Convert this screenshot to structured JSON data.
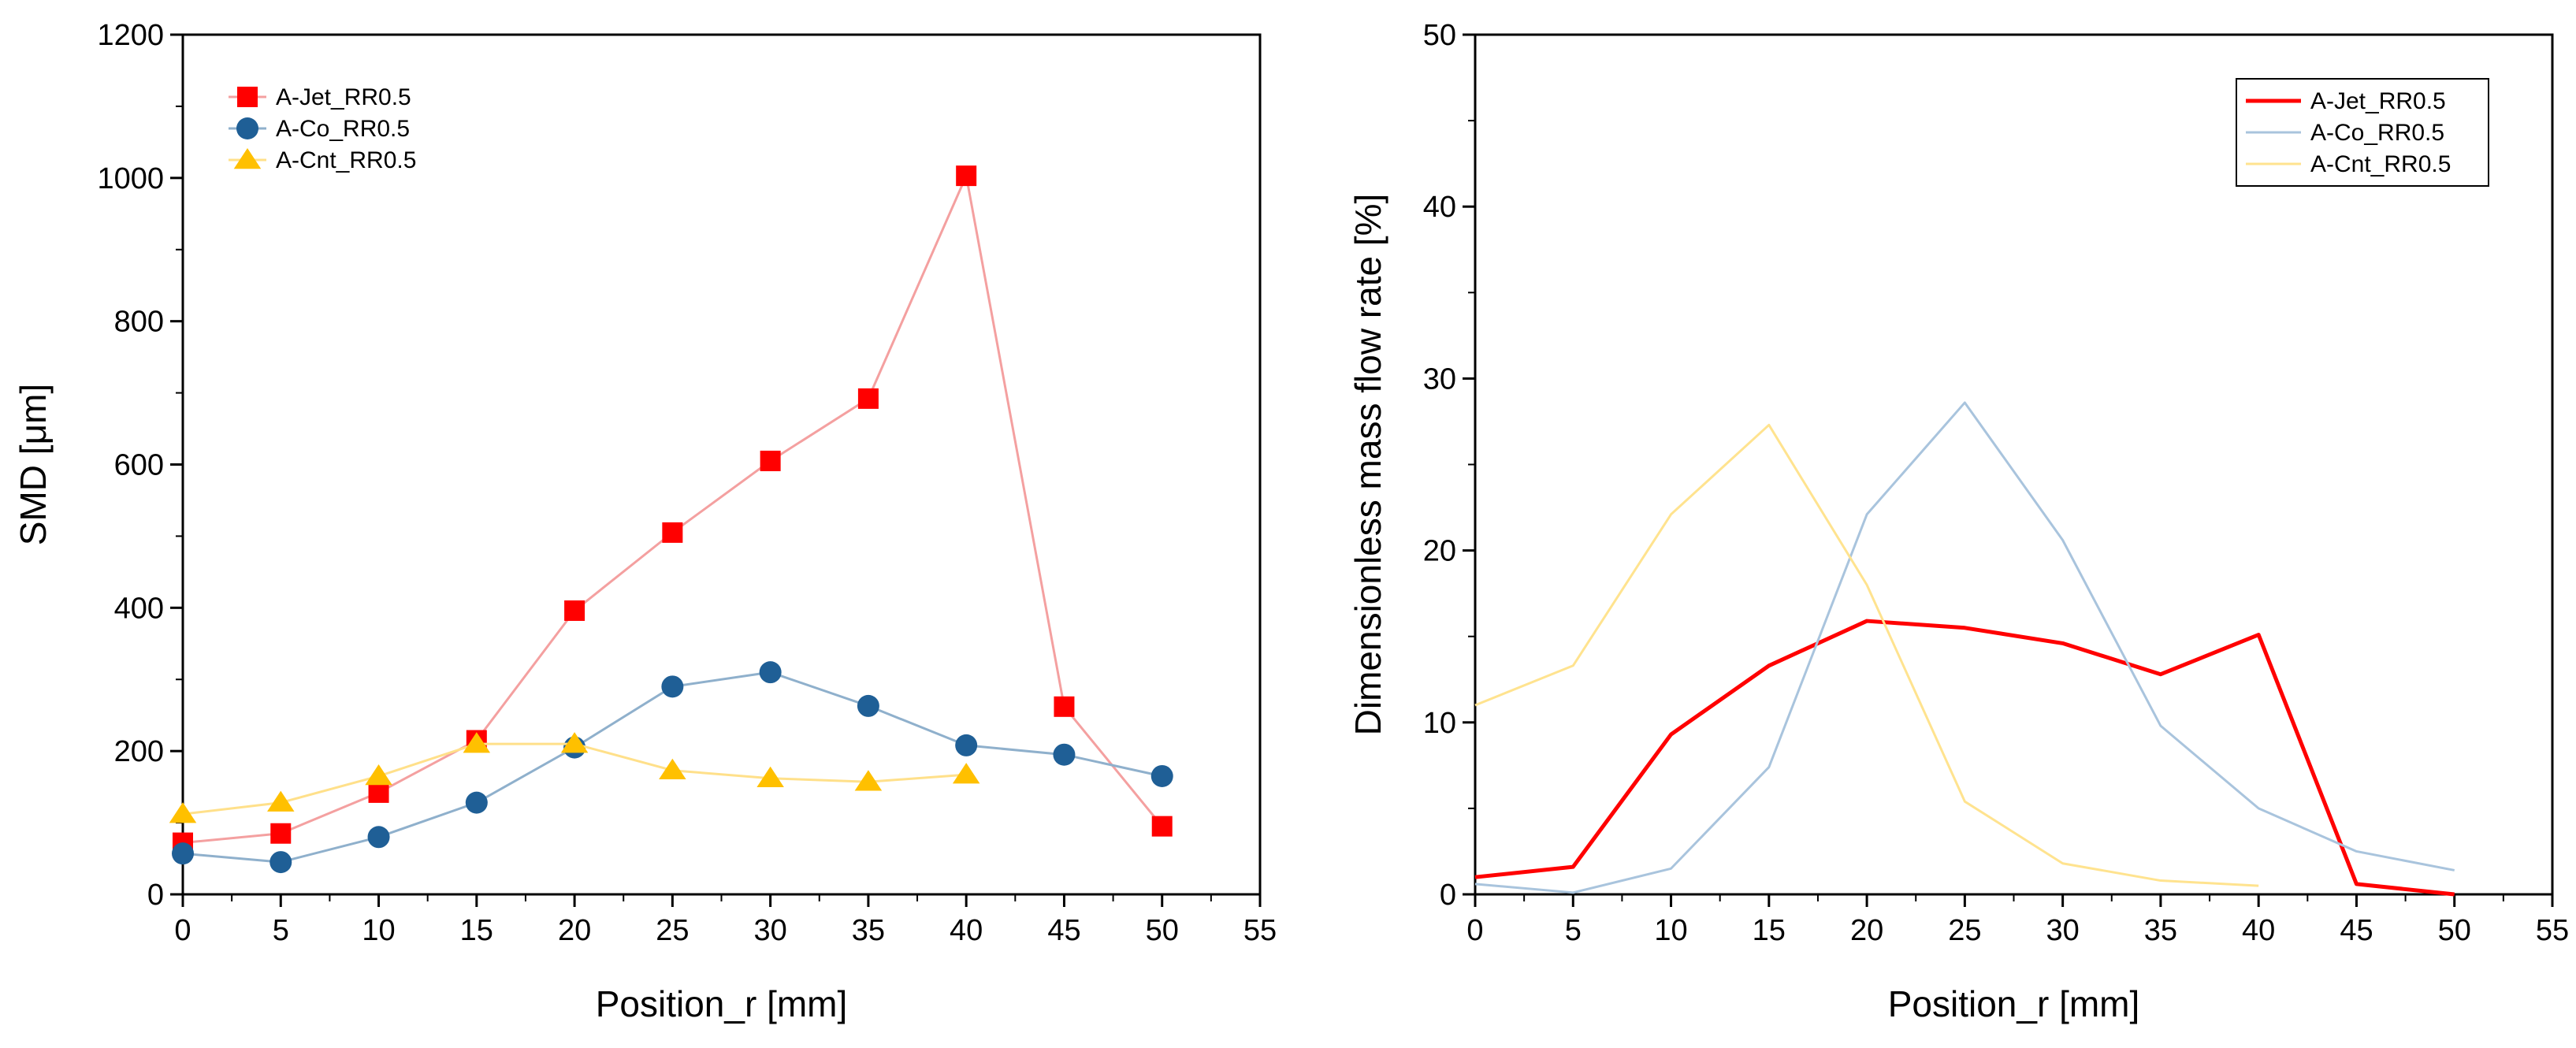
{
  "chart_data": [
    {
      "type": "line",
      "title": "",
      "xlabel": "Position_r [mm]",
      "ylabel": "SMD [μm]",
      "xlim": [
        0,
        55
      ],
      "ylim": [
        0,
        1200
      ],
      "xticks": [
        0,
        5,
        10,
        15,
        20,
        25,
        30,
        35,
        40,
        45,
        50,
        55
      ],
      "yticks": [
        0,
        200,
        400,
        600,
        800,
        1000,
        1200
      ],
      "legend_position": "top-left",
      "series": [
        {
          "name": "A-Jet_RR0.5",
          "color": "#ff0000",
          "line_color": "#f4a0a0",
          "marker": "square",
          "x": [
            0,
            5,
            10,
            15,
            20,
            25,
            30,
            35,
            40,
            45,
            50
          ],
          "y": [
            72,
            85,
            142,
            215,
            396,
            505,
            605,
            692,
            1003,
            262,
            95
          ]
        },
        {
          "name": "A-Co_RR0.5",
          "color": "#1f5f96",
          "line_color": "#8fb0cc",
          "marker": "circle",
          "x": [
            0,
            5,
            10,
            15,
            20,
            25,
            30,
            35,
            40,
            45,
            50
          ],
          "y": [
            57,
            45,
            80,
            128,
            205,
            290,
            310,
            263,
            208,
            195,
            165
          ]
        },
        {
          "name": "A-Cnt_RR0.5",
          "color": "#ffc000",
          "line_color": "#ffe08a",
          "marker": "triangle",
          "x": [
            0,
            5,
            10,
            15,
            20,
            25,
            30,
            35,
            40
          ],
          "y": [
            112,
            128,
            165,
            210,
            210,
            173,
            162,
            157,
            167
          ]
        }
      ]
    },
    {
      "type": "line",
      "title": "",
      "xlabel": "Position_r [mm]",
      "ylabel": "Dimensionless mass flow rate [%]",
      "xlim": [
        0,
        55
      ],
      "ylim": [
        0,
        50
      ],
      "xticks": [
        0,
        5,
        10,
        15,
        20,
        25,
        30,
        35,
        40,
        45,
        50,
        55
      ],
      "yticks": [
        0,
        10,
        20,
        30,
        40,
        50
      ],
      "legend_position": "top-right",
      "series": [
        {
          "name": "A-Jet_RR0.5",
          "color": "#ff0000",
          "line_color": "#ff0000",
          "marker": "none",
          "x": [
            0,
            5,
            10,
            15,
            20,
            25,
            30,
            35,
            40,
            45,
            50
          ],
          "y": [
            1.0,
            1.6,
            9.3,
            13.3,
            15.9,
            15.5,
            14.6,
            12.8,
            15.1,
            0.6,
            0.0
          ]
        },
        {
          "name": "A-Co_RR0.5",
          "color": "#a9c4dd",
          "line_color": "#a9c4dd",
          "marker": "none",
          "x": [
            0,
            5,
            10,
            15,
            20,
            25,
            30,
            35,
            40,
            45,
            50
          ],
          "y": [
            0.6,
            0.1,
            1.5,
            7.4,
            22.1,
            28.6,
            20.6,
            9.8,
            5.0,
            2.5,
            1.4
          ]
        },
        {
          "name": "A-Cnt_RR0.5",
          "color": "#ffe38f",
          "line_color": "#ffe38f",
          "marker": "none",
          "x": [
            0,
            5,
            10,
            15,
            20,
            25,
            30,
            35,
            40
          ],
          "y": [
            11.0,
            13.3,
            22.1,
            27.3,
            18.0,
            5.4,
            1.8,
            0.8,
            0.5
          ]
        }
      ]
    }
  ]
}
